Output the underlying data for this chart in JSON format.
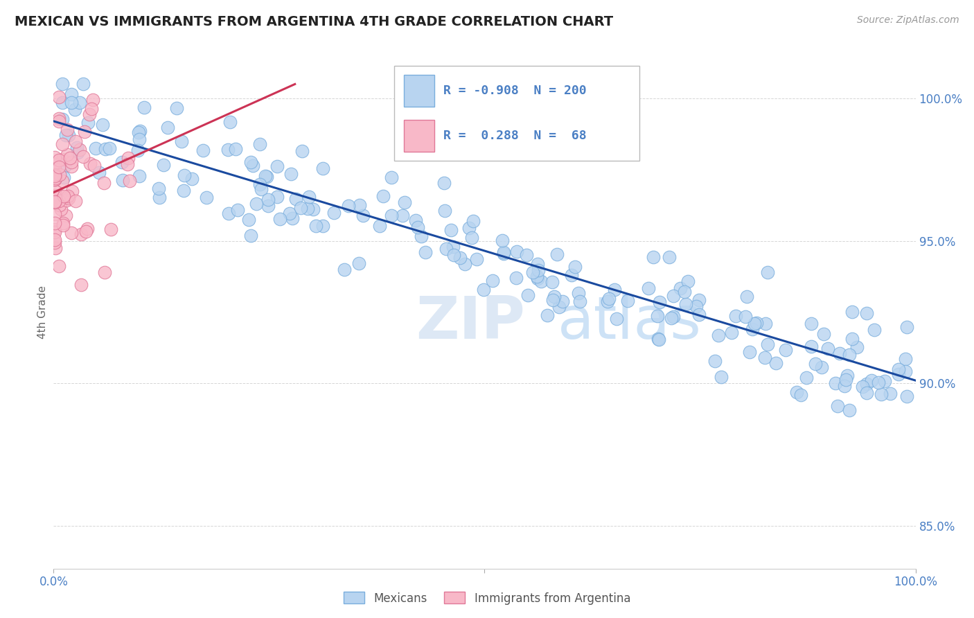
{
  "title": "MEXICAN VS IMMIGRANTS FROM ARGENTINA 4TH GRADE CORRELATION CHART",
  "source": "Source: ZipAtlas.com",
  "ylabel": "4th Grade",
  "legend_blue_R": "-0.908",
  "legend_blue_N": "200",
  "legend_pink_R": "0.288",
  "legend_pink_N": "68",
  "blue_color": "#b8d4f0",
  "blue_edge_color": "#7aaedd",
  "blue_line_color": "#1a4a9f",
  "pink_color": "#f8b8c8",
  "pink_edge_color": "#e07898",
  "pink_line_color": "#cc3355",
  "watermark_ZIP": "ZIP",
  "watermark_atlas": "atlas",
  "yaxis_ticks": [
    0.85,
    0.9,
    0.95,
    1.0
  ],
  "yaxis_labels": [
    "85.0%",
    "90.0%",
    "95.0%",
    "100.0%"
  ],
  "background_color": "#ffffff",
  "grid_color": "#cccccc",
  "title_color": "#222222",
  "axis_text_color": "#4a7fc4",
  "ylabel_color": "#666666",
  "source_color": "#999999",
  "legend_label_blue": "Mexicans",
  "legend_label_pink": "Immigrants from Argentina",
  "blue_line_x": [
    0.0,
    1.0
  ],
  "blue_line_y": [
    0.992,
    0.901
  ],
  "pink_line_x": [
    0.0,
    0.28
  ],
  "pink_line_y": [
    0.967,
    1.005
  ],
  "xlim": [
    0.0,
    1.0
  ],
  "ylim": [
    0.835,
    1.015
  ],
  "N_blue": 200,
  "N_pink": 68,
  "seed": 77
}
